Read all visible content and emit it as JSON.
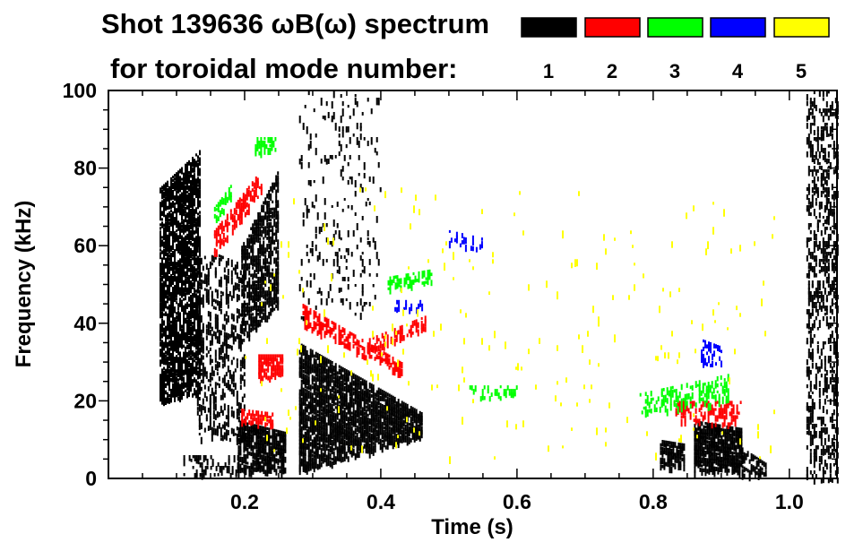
{
  "chart_data": {
    "type": "heatmap",
    "subtype": "spectrogram",
    "title": "Shot 139636 ωB(ω) spectrum",
    "legend_title": "for toroidal mode number:",
    "legend_placement": "top-right",
    "legend": [
      {
        "mode": "1",
        "color": "#000000"
      },
      {
        "mode": "2",
        "color": "#ff0000"
      },
      {
        "mode": "3",
        "color": "#00ff00"
      },
      {
        "mode": "4",
        "color": "#0000ff"
      },
      {
        "mode": "5",
        "color": "#ffff00"
      }
    ],
    "xlabel": "Time (s)",
    "ylabel": "Frequency (kHz)",
    "xlim": [
      0.0,
      1.07
    ],
    "ylim": [
      0,
      100
    ],
    "xticks": [
      0.2,
      0.4,
      0.6,
      0.8,
      1.0
    ],
    "xtick_labels": [
      "0.2",
      "0.4",
      "0.6",
      "0.8",
      "1.0"
    ],
    "x_minor_step": 0.05,
    "yticks": [
      0,
      20,
      40,
      60,
      80,
      100
    ],
    "ytick_labels": [
      "0",
      "20",
      "40",
      "60",
      "80",
      "100"
    ],
    "y_minor_step": 5,
    "features": [
      {
        "mode": 1,
        "t": [
          0.075,
          0.135
        ],
        "f_start": [
          20,
          75
        ],
        "f_end": [
          22,
          85
        ],
        "density": 0.75
      },
      {
        "mode": 1,
        "t": [
          0.13,
          0.2
        ],
        "f_start": [
          10,
          60
        ],
        "f_end": [
          10,
          55
        ],
        "density": 0.3
      },
      {
        "mode": 1,
        "t": [
          0.195,
          0.25
        ],
        "f_start": [
          35,
          60
        ],
        "f_end": [
          45,
          80
        ],
        "density": 0.7
      },
      {
        "mode": 1,
        "t": [
          0.11,
          0.19
        ],
        "f_start": [
          1,
          6
        ],
        "f_end": [
          1,
          6
        ],
        "density": 0.3
      },
      {
        "mode": 1,
        "t": [
          0.19,
          0.26
        ],
        "f_start": [
          2,
          15
        ],
        "f_end": [
          2,
          12
        ],
        "density": 0.8
      },
      {
        "mode": 1,
        "t": [
          0.28,
          0.46
        ],
        "f_start": [
          2,
          35
        ],
        "f_end": [
          11,
          17
        ],
        "density": 0.85
      },
      {
        "mode": 1,
        "t": [
          0.28,
          0.4
        ],
        "f_start": [
          40,
          100
        ],
        "f_end": [
          40,
          100
        ],
        "density": 0.08
      },
      {
        "mode": 1,
        "t": [
          0.81,
          0.845
        ],
        "f_start": [
          3,
          10
        ],
        "f_end": [
          3,
          9
        ],
        "density": 0.8
      },
      {
        "mode": 1,
        "t": [
          0.86,
          0.93
        ],
        "f_start": [
          2,
          15
        ],
        "f_end": [
          2,
          13
        ],
        "density": 0.9
      },
      {
        "mode": 1,
        "t": [
          0.93,
          0.965
        ],
        "f_start": [
          1,
          8
        ],
        "f_end": [
          1,
          4
        ],
        "density": 0.6
      },
      {
        "mode": 1,
        "t": [
          1.025,
          1.07
        ],
        "f_start": [
          0,
          100
        ],
        "f_end": [
          0,
          100
        ],
        "density": 0.35
      },
      {
        "mode": 2,
        "t": [
          0.155,
          0.225
        ],
        "f_start": [
          58,
          64
        ],
        "f_end": [
          74,
          80
        ],
        "density": 0.6
      },
      {
        "mode": 2,
        "t": [
          0.22,
          0.255
        ],
        "f_start": [
          26,
          32
        ],
        "f_end": [
          27,
          32
        ],
        "density": 0.8
      },
      {
        "mode": 2,
        "t": [
          0.195,
          0.24
        ],
        "f_start": [
          15,
          18
        ],
        "f_end": [
          14,
          17
        ],
        "density": 0.6
      },
      {
        "mode": 2,
        "t": [
          0.285,
          0.43
        ],
        "f_start": [
          40,
          45
        ],
        "f_end": [
          27,
          30
        ],
        "density": 0.6
      },
      {
        "mode": 2,
        "t": [
          0.38,
          0.465
        ],
        "f_start": [
          33,
          36
        ],
        "f_end": [
          39,
          42
        ],
        "density": 0.5
      },
      {
        "mode": 2,
        "t": [
          0.83,
          0.93
        ],
        "f_start": [
          15,
          20
        ],
        "f_end": [
          14,
          20
        ],
        "density": 0.45
      },
      {
        "mode": 3,
        "t": [
          0.155,
          0.18
        ],
        "f_start": [
          66,
          70
        ],
        "f_end": [
          72,
          76
        ],
        "density": 0.6
      },
      {
        "mode": 3,
        "t": [
          0.215,
          0.245
        ],
        "f_start": [
          84,
          88
        ],
        "f_end": [
          85,
          88
        ],
        "density": 0.6
      },
      {
        "mode": 3,
        "t": [
          0.41,
          0.475
        ],
        "f_start": [
          49,
          52
        ],
        "f_end": [
          51,
          54
        ],
        "density": 0.5
      },
      {
        "mode": 3,
        "t": [
          0.53,
          0.6
        ],
        "f_start": [
          21,
          24
        ],
        "f_end": [
          21,
          24
        ],
        "density": 0.3
      },
      {
        "mode": 3,
        "t": [
          0.78,
          0.91
        ],
        "f_start": [
          17,
          22
        ],
        "f_end": [
          20,
          27
        ],
        "density": 0.35
      },
      {
        "mode": 4,
        "t": [
          0.5,
          0.55
        ],
        "f_start": [
          61,
          64
        ],
        "f_end": [
          59,
          62
        ],
        "density": 0.3
      },
      {
        "mode": 4,
        "t": [
          0.42,
          0.46
        ],
        "f_start": [
          44,
          46
        ],
        "f_end": [
          44,
          46
        ],
        "density": 0.3
      },
      {
        "mode": 4,
        "t": [
          0.87,
          0.9
        ],
        "f_start": [
          30,
          36
        ],
        "f_end": [
          29,
          34
        ],
        "density": 0.4
      },
      {
        "mode": 5,
        "t": [
          0.2,
          0.98
        ],
        "f_start": [
          5,
          75
        ],
        "f_end": [
          5,
          75
        ],
        "density": 0.01
      }
    ]
  }
}
